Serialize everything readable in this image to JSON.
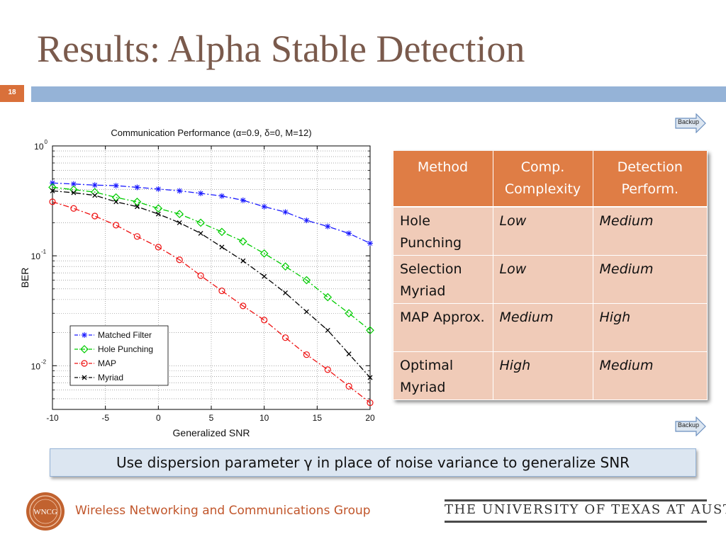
{
  "slide": {
    "title": "Results: Alpha Stable Detection",
    "page_number": "18",
    "backup_label": "Backup",
    "note": "Use dispersion parameter γ in place of noise variance to generalize SNR",
    "footer_group": "Wireless Networking and Communications Group",
    "footer_logo_text": "WNCG",
    "footer_university": "THE UNIVERSITY OF TEXAS AT AUSTIN",
    "colors": {
      "title": "#7a5a4c",
      "accent": "#d9703a",
      "bar": "#95b3d7",
      "table_header": "#df7d45",
      "table_cell": "#f0cbb8"
    }
  },
  "table": {
    "headers": [
      "Method",
      "Comp. Complexity",
      "Detection Perform."
    ],
    "rows": [
      [
        "Hole Punching",
        "Low",
        "Medium"
      ],
      [
        "Selection Myriad",
        "Low",
        "Medium"
      ],
      [
        "MAP Approx.",
        "Medium",
        "High"
      ],
      [
        "Optimal Myriad",
        "High",
        "Medium"
      ]
    ]
  },
  "chart_data": {
    "type": "line",
    "title": "Communication Performance (α=0.9, δ=0, M=12)",
    "xlabel": "Generalized SNR",
    "ylabel": "BER",
    "xlim": [
      -10,
      20
    ],
    "ylim": [
      0.004,
      1
    ],
    "yscale": "log",
    "grid": true,
    "legend_position": "bottom-left",
    "x_ticks": [
      -10,
      -5,
      0,
      5,
      10,
      15,
      20
    ],
    "y_ticks": [
      {
        "value": 1,
        "base": "10",
        "exp": "0"
      },
      {
        "value": 0.1,
        "base": "10",
        "exp": "-1"
      },
      {
        "value": 0.01,
        "base": "10",
        "exp": "-2"
      }
    ],
    "x": [
      -10,
      -8,
      -6,
      -4,
      -2,
      0,
      2,
      4,
      6,
      8,
      10,
      12,
      14,
      16,
      18,
      20
    ],
    "series": [
      {
        "name": "Matched Filter",
        "color": "#1a1aff",
        "marker": "star",
        "dash": "8,3,2,3",
        "values": [
          0.46,
          0.45,
          0.44,
          0.435,
          0.42,
          0.405,
          0.39,
          0.37,
          0.35,
          0.32,
          0.28,
          0.25,
          0.21,
          0.185,
          0.16,
          0.13
        ]
      },
      {
        "name": "Hole Punching",
        "color": "#00cc00",
        "marker": "diamond",
        "dash": "8,3,2,3",
        "values": [
          0.42,
          0.4,
          0.38,
          0.34,
          0.31,
          0.27,
          0.24,
          0.2,
          0.165,
          0.135,
          0.105,
          0.08,
          0.06,
          0.042,
          0.03,
          0.021
        ]
      },
      {
        "name": "MAP",
        "color": "#ee1111",
        "marker": "circle",
        "dash": "8,3,2,3",
        "values": [
          0.31,
          0.27,
          0.23,
          0.19,
          0.15,
          0.12,
          0.092,
          0.066,
          0.048,
          0.035,
          0.026,
          0.018,
          0.0126,
          0.0092,
          0.0065,
          0.0046
        ]
      },
      {
        "name": "Myriad",
        "color": "#000000",
        "marker": "x",
        "dash": "8,3,2,3",
        "values": [
          0.39,
          0.375,
          0.355,
          0.31,
          0.28,
          0.24,
          0.2,
          0.16,
          0.12,
          0.09,
          0.065,
          0.046,
          0.031,
          0.021,
          0.0128,
          0.0078
        ]
      }
    ]
  }
}
